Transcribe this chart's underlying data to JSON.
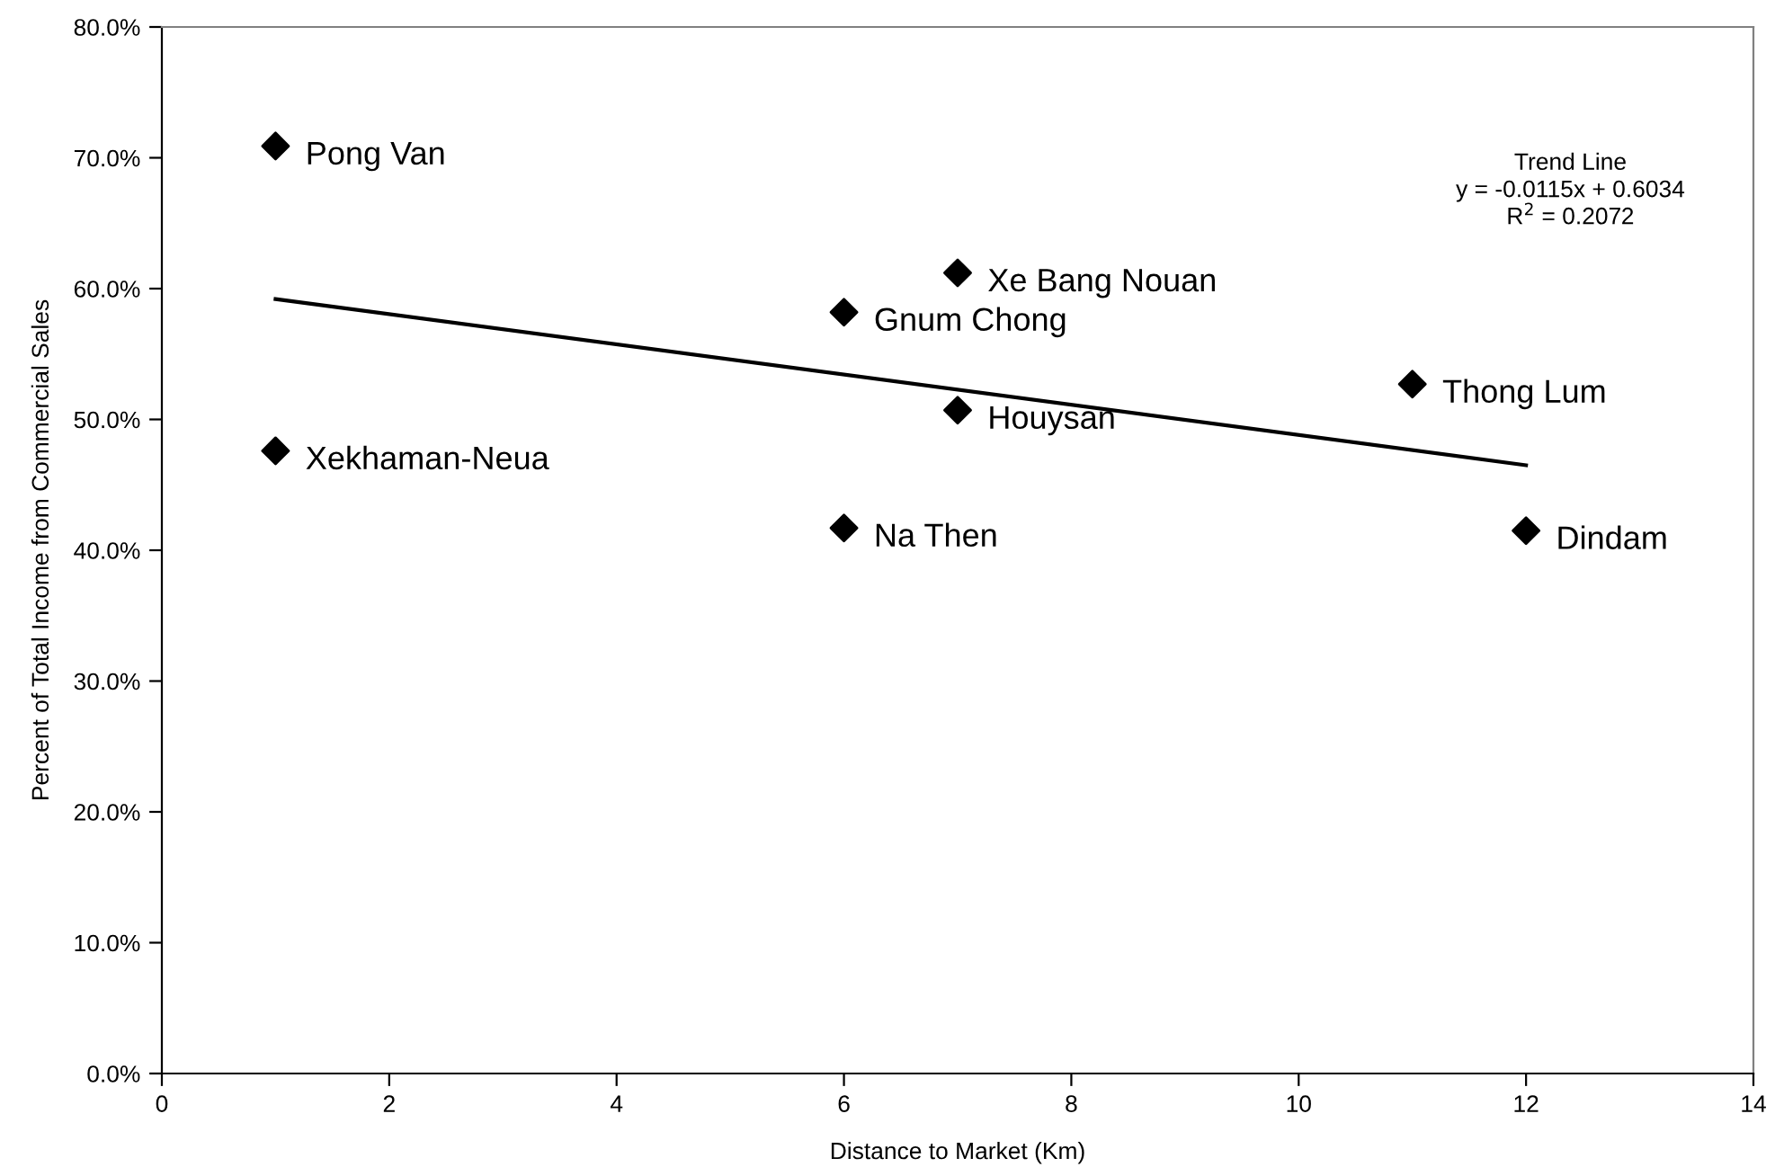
{
  "chart_data": {
    "type": "scatter",
    "xlabel": "Distance to Market (Km)",
    "ylabel": "Percent of Total Income from Commercial Sales",
    "xlim": [
      0,
      14
    ],
    "xticks": [
      0,
      2,
      4,
      6,
      8,
      10,
      12,
      14
    ],
    "ylim": [
      0,
      80
    ],
    "yticks": [
      {
        "value": 0,
        "label": "0.0%"
      },
      {
        "value": 10,
        "label": "10.0%"
      },
      {
        "value": 20,
        "label": "20.0%"
      },
      {
        "value": 30,
        "label": "30.0%"
      },
      {
        "value": 40,
        "label": "40.0%"
      },
      {
        "value": 50,
        "label": "50.0%"
      },
      {
        "value": 60,
        "label": "60.0%"
      },
      {
        "value": 70,
        "label": "70.0%"
      },
      {
        "value": 80,
        "label": "80.0%"
      }
    ],
    "grid": false,
    "legend": false,
    "marker": "diamond",
    "series": [
      {
        "color": "#000000",
        "x": [
          1,
          1,
          7,
          6,
          7,
          6,
          11,
          12
        ],
        "values": [
          70.9,
          47.6,
          61.2,
          58.2,
          50.7,
          41.7,
          52.7,
          41.5
        ]
      },
      {
        "type": "line",
        "color": "#000000",
        "x": [
          1,
          12
        ],
        "values": [
          59.2,
          46.5
        ],
        "marker": "none",
        "line_style": "solid"
      }
    ],
    "annotations": [
      {
        "text": "Pong Van",
        "x": 1,
        "y": 70.9
      },
      {
        "text": "Xekhaman-Neua",
        "x": 1,
        "y": 47.6
      },
      {
        "text": "Xe Bang Nouan",
        "x": 7,
        "y": 61.2
      },
      {
        "text": "Gnum Chong",
        "x": 6,
        "y": 58.2
      },
      {
        "text": "Houysan",
        "x": 7,
        "y": 50.7
      },
      {
        "text": "Na Then",
        "x": 6,
        "y": 41.7
      },
      {
        "text": "Thong Lum",
        "x": 11,
        "y": 52.7
      },
      {
        "text": "Dindam",
        "x": 12,
        "y": 41.5
      },
      "Trend Line\ny = -0.0115x + 0.6034\nR$^{2}$ = 0.2072"
    ]
  }
}
